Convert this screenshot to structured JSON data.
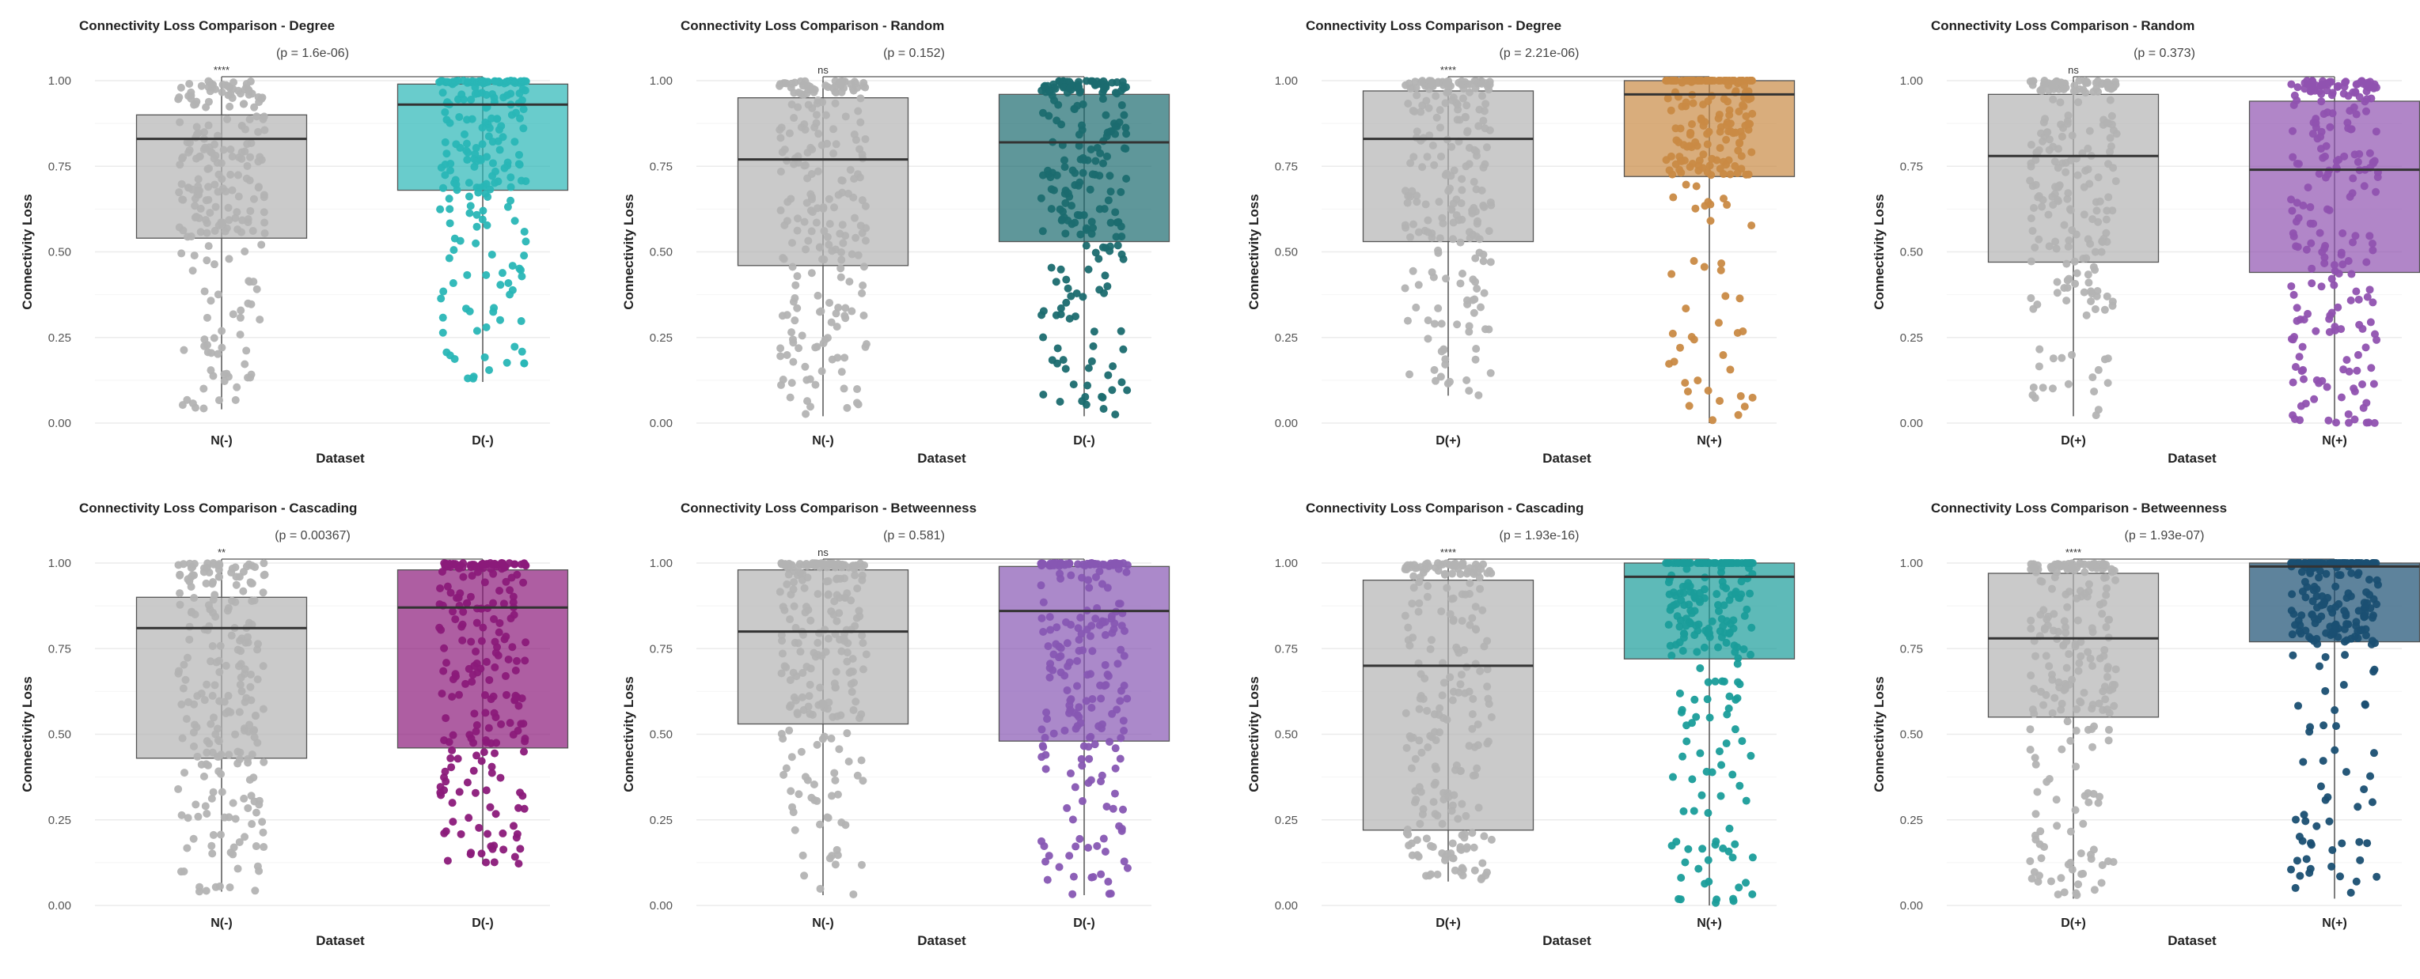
{
  "chart_data": [
    {
      "type": "boxplot",
      "title": "Connectivity Loss Comparison - Degree",
      "pvalue": "(p = 1.6e-06)",
      "sig": "****",
      "xlabel": "Dataset",
      "ylabel": "Connectivity Loss",
      "ylim": [
        0,
        1
      ],
      "yticks": [
        "0.00",
        "0.25",
        "0.50",
        "0.75",
        "1.00"
      ],
      "groups": [
        {
          "name": "N(-)",
          "color": "#b3b3b3",
          "q1": 0.54,
          "median": 0.83,
          "q3": 0.9,
          "lo": 0.04,
          "hi": 1.0,
          "seed": 11
        },
        {
          "name": "D(-)",
          "color": "#29b6b6",
          "q1": 0.68,
          "median": 0.93,
          "q3": 0.99,
          "lo": 0.12,
          "hi": 1.0,
          "seed": 12
        }
      ]
    },
    {
      "type": "boxplot",
      "title": "Connectivity Loss Comparison - Random",
      "pvalue": "(p = 0.152)",
      "sig": "ns",
      "xlabel": "Dataset",
      "ylabel": "Connectivity Loss",
      "ylim": [
        0,
        1
      ],
      "yticks": [
        "0.00",
        "0.25",
        "0.50",
        "0.75",
        "1.00"
      ],
      "groups": [
        {
          "name": "N(-)",
          "color": "#b3b3b3",
          "q1": 0.46,
          "median": 0.77,
          "q3": 0.95,
          "lo": 0.02,
          "hi": 1.0,
          "seed": 21
        },
        {
          "name": "D(-)",
          "color": "#1b6b6f",
          "q1": 0.53,
          "median": 0.82,
          "q3": 0.96,
          "lo": 0.02,
          "hi": 1.0,
          "seed": 22
        }
      ]
    },
    {
      "type": "boxplot",
      "title": "Connectivity Loss Comparison - Degree",
      "pvalue": "(p = 2.21e-06)",
      "sig": "****",
      "xlabel": "Dataset",
      "ylabel": "Connectivity Loss",
      "ylim": [
        0,
        1
      ],
      "yticks": [
        "0.00",
        "0.25",
        "0.50",
        "0.75",
        "1.00"
      ],
      "groups": [
        {
          "name": "D(+)",
          "color": "#b3b3b3",
          "q1": 0.53,
          "median": 0.83,
          "q3": 0.97,
          "lo": 0.08,
          "hi": 1.0,
          "seed": 31
        },
        {
          "name": "N(+)",
          "color": "#c98a45",
          "q1": 0.72,
          "median": 0.96,
          "q3": 1.0,
          "lo": 0.0,
          "hi": 1.0,
          "seed": 32
        }
      ]
    },
    {
      "type": "boxplot",
      "title": "Connectivity Loss Comparison - Random",
      "pvalue": "(p = 0.373)",
      "sig": "ns",
      "xlabel": "Dataset",
      "ylabel": "Connectivity Loss",
      "ylim": [
        0,
        1
      ],
      "yticks": [
        "0.00",
        "0.25",
        "0.50",
        "0.75",
        "1.00"
      ],
      "groups": [
        {
          "name": "D(+)",
          "color": "#b3b3b3",
          "q1": 0.47,
          "median": 0.78,
          "q3": 0.96,
          "lo": 0.02,
          "hi": 1.0,
          "seed": 41
        },
        {
          "name": "N(+)",
          "color": "#9052b0",
          "q1": 0.44,
          "median": 0.74,
          "q3": 0.94,
          "lo": 0.0,
          "hi": 1.0,
          "seed": 42
        }
      ]
    },
    {
      "type": "boxplot",
      "title": "Connectivity Loss Comparison - Cascading",
      "pvalue": "(p = 0.00367)",
      "sig": "**",
      "xlabel": "Dataset",
      "ylabel": "Connectivity Loss",
      "ylim": [
        0,
        1
      ],
      "yticks": [
        "0.00",
        "0.25",
        "0.50",
        "0.75",
        "1.00"
      ],
      "groups": [
        {
          "name": "N(-)",
          "color": "#b3b3b3",
          "q1": 0.43,
          "median": 0.81,
          "q3": 0.9,
          "lo": 0.04,
          "hi": 1.0,
          "seed": 51
        },
        {
          "name": "D(-)",
          "color": "#8b1a7a",
          "q1": 0.46,
          "median": 0.87,
          "q3": 0.98,
          "lo": 0.12,
          "hi": 1.0,
          "seed": 52
        }
      ]
    },
    {
      "type": "boxplot",
      "title": "Connectivity Loss Comparison - Betweenness",
      "pvalue": "(p = 0.581)",
      "sig": "ns",
      "xlabel": "Dataset",
      "ylabel": "Connectivity Loss",
      "ylim": [
        0,
        1
      ],
      "yticks": [
        "0.00",
        "0.25",
        "0.50",
        "0.75",
        "1.00"
      ],
      "groups": [
        {
          "name": "N(-)",
          "color": "#b3b3b3",
          "q1": 0.53,
          "median": 0.8,
          "q3": 0.98,
          "lo": 0.03,
          "hi": 1.0,
          "seed": 61
        },
        {
          "name": "D(-)",
          "color": "#8757b3",
          "q1": 0.48,
          "median": 0.86,
          "q3": 0.99,
          "lo": 0.03,
          "hi": 1.0,
          "seed": 62
        }
      ]
    },
    {
      "type": "boxplot",
      "title": "Connectivity Loss Comparison - Cascading",
      "pvalue": "(p = 1.93e-16)",
      "sig": "****",
      "xlabel": "Dataset",
      "ylabel": "Connectivity Loss",
      "ylim": [
        0,
        1
      ],
      "yticks": [
        "0.00",
        "0.25",
        "0.50",
        "0.75",
        "1.00"
      ],
      "groups": [
        {
          "name": "D(+)",
          "color": "#b3b3b3",
          "q1": 0.22,
          "median": 0.7,
          "q3": 0.95,
          "lo": 0.07,
          "hi": 1.0,
          "seed": 71
        },
        {
          "name": "N(+)",
          "color": "#1a9d9a",
          "q1": 0.72,
          "median": 0.96,
          "q3": 1.0,
          "lo": 0.0,
          "hi": 1.0,
          "seed": 72
        }
      ]
    },
    {
      "type": "boxplot",
      "title": "Connectivity Loss Comparison - Betweenness",
      "pvalue": "(p = 1.93e-07)",
      "sig": "****",
      "xlabel": "Dataset",
      "ylabel": "Connectivity Loss",
      "ylim": [
        0,
        1
      ],
      "yticks": [
        "0.00",
        "0.25",
        "0.50",
        "0.75",
        "1.00"
      ],
      "groups": [
        {
          "name": "D(+)",
          "color": "#b3b3b3",
          "q1": 0.55,
          "median": 0.78,
          "q3": 0.97,
          "lo": 0.02,
          "hi": 1.0,
          "seed": 81
        },
        {
          "name": "N(+)",
          "color": "#1a4f72",
          "q1": 0.77,
          "median": 0.99,
          "q3": 1.0,
          "lo": 0.02,
          "hi": 1.0,
          "seed": 82
        }
      ]
    }
  ]
}
